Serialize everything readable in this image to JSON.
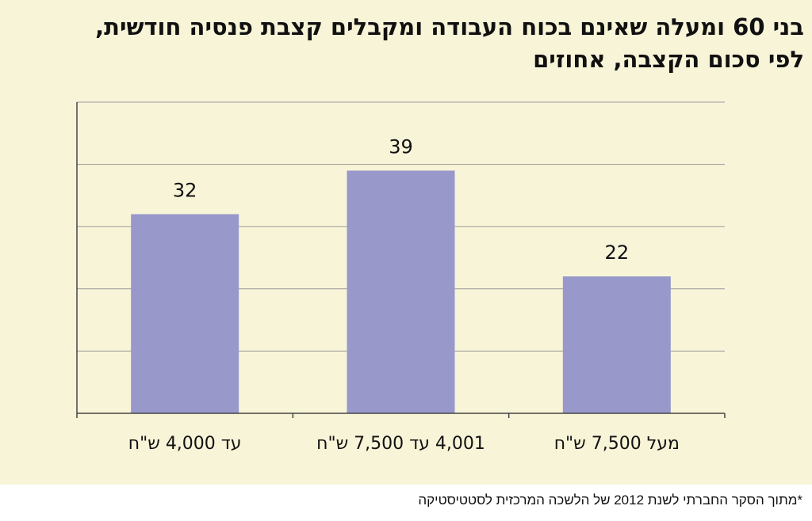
{
  "chart_data": {
    "type": "bar",
    "title": "בני 60 ומעלה שאינם בכוח העבודה ומקבלים קצבת פנסיה חודשית,",
    "subtitle": "לפי סכום הקצבה, אחוזים",
    "categories": [
      "עד 4,000 ש\"ח",
      "4,001 עד 7,500 ש\"ח",
      "מעל 7,500 ש\"ח"
    ],
    "values": [
      32,
      39,
      22
    ],
    "data_labels": [
      "32",
      "39",
      "22"
    ],
    "ylim": [
      0,
      50
    ],
    "grid": true,
    "colors": {
      "bar": "#9898cb",
      "background": "#f8f4d8",
      "grid": "#9a9a9a"
    }
  },
  "footnote": "*מתוך הסקר החברתי לשנת 2012 של הלשכה המרכזית לסטטיסטיקה"
}
